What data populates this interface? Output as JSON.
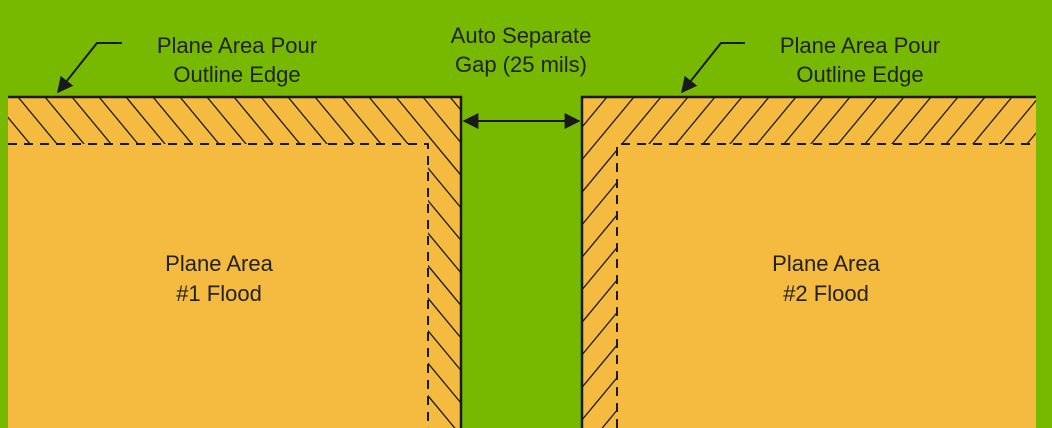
{
  "colors": {
    "background": "#76b900",
    "plane_fill": "#f4bb40",
    "outline": "#1a1a1a"
  },
  "labels": {
    "left_edge_line1": "Plane Area Pour",
    "left_edge_line2": "Outline Edge",
    "gap_line1": "Auto Separate",
    "gap_line2": "Gap (25 mils)",
    "right_edge_line1": "Plane Area Pour",
    "right_edge_line2": "Outline Edge",
    "plane1_line1": "Plane Area",
    "plane1_line2": "#1 Flood",
    "plane2_line1": "Plane Area",
    "plane2_line2": "#2 Flood"
  }
}
